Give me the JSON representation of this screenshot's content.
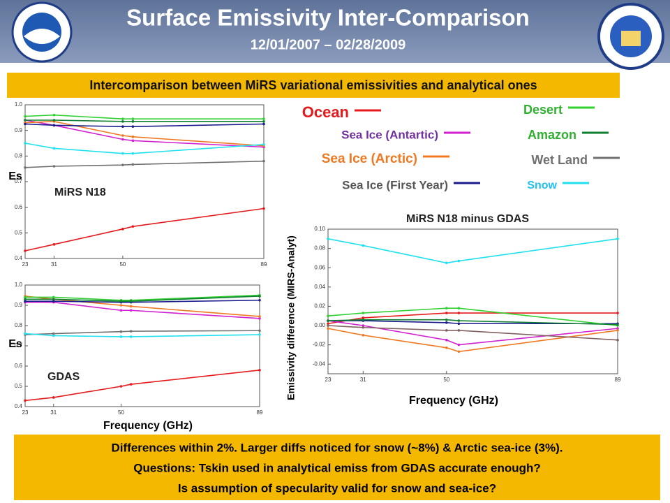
{
  "slide": {
    "title": "Surface Emissivity Inter-Comparison",
    "subtitle": "12/01/2007 – 02/28/2009",
    "banner": "Intercomparison between MiRS variational emissivities and analytical ones",
    "footer": [
      "Differences within 2%. Larger diffs noticed for snow (~8%) & Arctic sea-ice (3%).",
      "Questions: Tskin used in analytical emiss from GDAS accurate enough?",
      "Is assumption of specularity valid for snow and sea-ice?"
    ]
  },
  "chart_data": [
    {
      "type": "line",
      "title": "MiRS N18",
      "ylabel": "Es",
      "x": [
        23,
        31,
        50,
        52.8,
        89
      ],
      "xlim": [
        23,
        89
      ],
      "xticks": [
        23,
        31,
        50,
        89
      ],
      "ylim": [
        0.4,
        1
      ],
      "yticks": [
        0.4,
        0.5,
        0.6,
        0.7,
        0.8,
        0.9,
        {
          "value": 1,
          "label": "1.0"
        }
      ],
      "series": [
        {
          "name": "Ocean",
          "color": "#e41a1c",
          "values": [
            0.43,
            0.455,
            0.515,
            0.525,
            0.595
          ]
        },
        {
          "name": "Sea Ice (Antartic)",
          "color": "#d020d0",
          "values": [
            0.94,
            0.92,
            0.865,
            0.86,
            0.835
          ]
        },
        {
          "name": "Sea Ice (Arctic)",
          "color": "#f07820",
          "values": [
            0.93,
            0.935,
            0.88,
            0.875,
            0.84
          ]
        },
        {
          "name": "Sea Ice (First Year)",
          "color": "#1a1a8c",
          "values": [
            0.925,
            0.92,
            0.915,
            0.915,
            0.925
          ]
        },
        {
          "name": "Desert",
          "color": "#30d030",
          "values": [
            0.955,
            0.96,
            0.945,
            0.945,
            0.945
          ]
        },
        {
          "name": "Amazon",
          "color": "#108030",
          "values": [
            0.94,
            0.94,
            0.935,
            0.935,
            0.935
          ]
        },
        {
          "name": "Wet Land",
          "color": "#707070",
          "values": [
            0.755,
            0.76,
            0.765,
            0.767,
            0.78
          ]
        },
        {
          "name": "Snow",
          "color": "#20e0f0",
          "values": [
            0.85,
            0.83,
            0.81,
            0.81,
            0.845
          ]
        }
      ]
    },
    {
      "type": "line",
      "title": "GDAS",
      "ylabel": "Es",
      "xlabel": "Frequency (GHz)",
      "x": [
        23,
        31,
        50,
        52.8,
        89
      ],
      "xlim": [
        23,
        89
      ],
      "xticks": [
        23,
        31,
        50,
        89
      ],
      "ylim": [
        0.4,
        1
      ],
      "yticks": [
        0.4,
        0.5,
        0.6,
        0.7,
        0.8,
        0.9,
        {
          "value": 1,
          "label": "1.0"
        }
      ],
      "series": [
        {
          "name": "Ocean",
          "color": "#e41a1c",
          "values": [
            0.43,
            0.445,
            0.5,
            0.51,
            0.58
          ]
        },
        {
          "name": "Sea Ice (Antartic)",
          "color": "#d020d0",
          "values": [
            0.915,
            0.915,
            0.875,
            0.875,
            0.835
          ]
        },
        {
          "name": "Sea Ice (Arctic)",
          "color": "#f07820",
          "values": [
            0.945,
            0.93,
            0.9,
            0.895,
            0.845
          ]
        },
        {
          "name": "Sea Ice (First Year)",
          "color": "#1a1a8c",
          "values": [
            0.92,
            0.92,
            0.915,
            0.915,
            0.925
          ]
        },
        {
          "name": "Desert",
          "color": "#30d030",
          "values": [
            0.94,
            0.94,
            0.925,
            0.925,
            0.95
          ]
        },
        {
          "name": "Amazon",
          "color": "#108030",
          "values": [
            0.93,
            0.93,
            0.92,
            0.92,
            0.945
          ]
        },
        {
          "name": "Wet Land",
          "color": "#707070",
          "values": [
            0.755,
            0.76,
            0.77,
            0.772,
            0.775
          ]
        },
        {
          "name": "Snow",
          "color": "#20e0f0",
          "values": [
            0.76,
            0.75,
            0.745,
            0.745,
            0.755
          ]
        }
      ]
    },
    {
      "type": "line",
      "title": "MiRS N18 minus GDAS",
      "ylabel": "Emissivity difference (MIRS-Analyt)",
      "xlabel": "Frequency (GHz)",
      "x": [
        23,
        31,
        50,
        52.8,
        89
      ],
      "xlim": [
        23,
        89
      ],
      "xticks": [
        23,
        31,
        50,
        89
      ],
      "ylim": [
        -0.05,
        0.1
      ],
      "yticks": [
        -0.04,
        -0.02,
        {
          "value": 0,
          "label": "0.00"
        },
        0.02,
        0.04,
        0.06,
        0.08,
        {
          "value": 0.1,
          "label": "0.10"
        }
      ],
      "series": [
        {
          "name": "Ocean",
          "color": "#e41a1c",
          "values": [
            0.002,
            0.008,
            0.013,
            0.013,
            0.013
          ]
        },
        {
          "name": "Sea Ice (Antartic)",
          "color": "#d020d0",
          "values": [
            0.005,
            0.0,
            -0.015,
            -0.02,
            -0.003
          ]
        },
        {
          "name": "Sea Ice (Arctic)",
          "color": "#f07820",
          "values": [
            -0.003,
            -0.01,
            -0.023,
            -0.027,
            -0.005
          ]
        },
        {
          "name": "Sea Ice (First Year)",
          "color": "#1a1a8c",
          "values": [
            0.005,
            0.005,
            0.003,
            0.002,
            0.002
          ]
        },
        {
          "name": "Desert",
          "color": "#30d030",
          "values": [
            0.01,
            0.013,
            0.018,
            0.018,
            0.0
          ]
        },
        {
          "name": "Amazon",
          "color": "#108030",
          "values": [
            0.005,
            0.006,
            0.006,
            0.005,
            0.001
          ]
        },
        {
          "name": "Wet Land",
          "color": "#806060",
          "values": [
            0.0,
            -0.002,
            -0.005,
            -0.005,
            -0.015
          ]
        },
        {
          "name": "Snow",
          "color": "#20e0f0",
          "values": [
            0.09,
            0.083,
            0.065,
            0.067,
            0.09
          ]
        }
      ]
    }
  ]
}
